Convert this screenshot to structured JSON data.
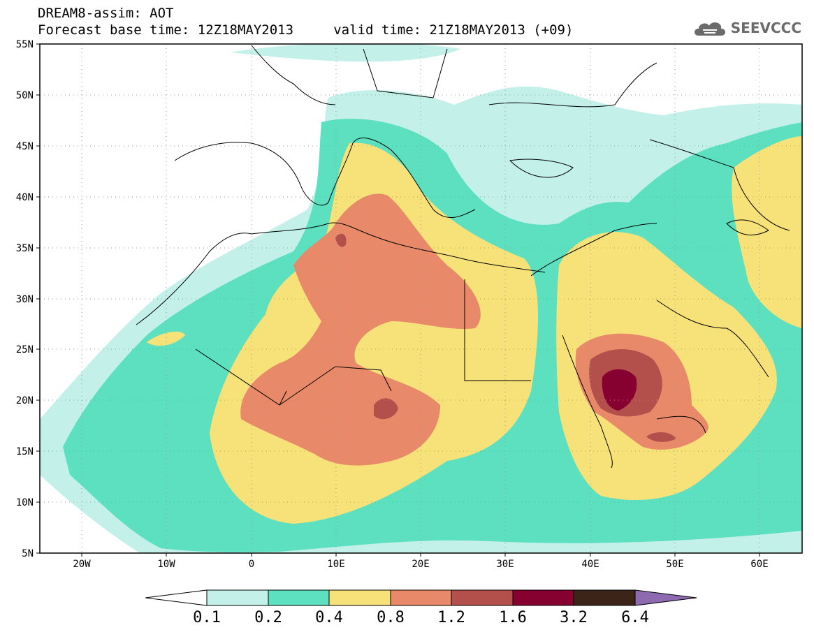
{
  "header": {
    "line1": "DREAM8-assim: AOT",
    "line2": "Forecast base time: 12Z18MAY2013     valid time: 21Z18MAY2013 (+09)"
  },
  "logo": {
    "icon": "cloud-icon",
    "text": "SEEVCCC"
  },
  "axes": {
    "lat_labels": [
      "55N",
      "50N",
      "45N",
      "40N",
      "35N",
      "30N",
      "25N",
      "20N",
      "15N",
      "10N",
      "5N"
    ],
    "lon_labels": [
      "20W",
      "10W",
      "0",
      "10E",
      "20E",
      "30E",
      "40E",
      "50E",
      "60E"
    ],
    "lat_range": [
      5,
      55
    ],
    "lon_range": [
      -25,
      65
    ],
    "grid": true
  },
  "colorbar": {
    "labels": [
      "0.1",
      "0.2",
      "0.4",
      "0.8",
      "1.2",
      "1.6",
      "3.2",
      "6.4"
    ],
    "colors": [
      "#c4f0ea",
      "#5ce0c0",
      "#f7e27a",
      "#e8896a",
      "#b4504c",
      "#860030",
      "#3c2418",
      "#8e6ab0"
    ],
    "under_color": "#ffffff"
  },
  "field_name": "AOT"
}
